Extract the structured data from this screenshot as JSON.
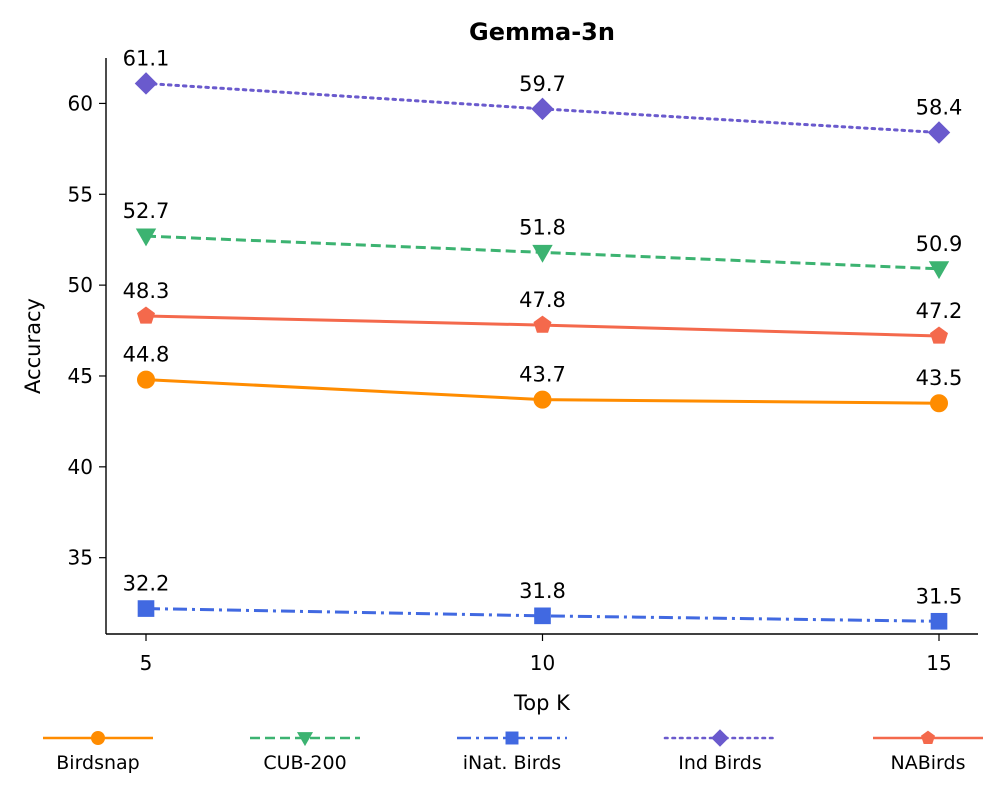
{
  "chart_data": {
    "type": "line",
    "title": "Gemma-3n",
    "xlabel": "Top K",
    "ylabel": "Accuracy",
    "x": [
      5,
      10,
      15
    ],
    "xticks": [
      "5",
      "10",
      "15"
    ],
    "yticks": [
      35,
      40,
      45,
      50,
      55,
      60
    ],
    "ylim": [
      30.8,
      62.5
    ],
    "grid": false,
    "legend_position": "bottom",
    "series": [
      {
        "name": "Birdsnap",
        "values": [
          44.8,
          43.7,
          43.5
        ],
        "labels": [
          "44.8",
          "43.7",
          "43.5"
        ],
        "color": "#FF8C00",
        "dash": "solid",
        "marker": "circle"
      },
      {
        "name": "CUB-200",
        "values": [
          52.7,
          51.8,
          50.9
        ],
        "labels": [
          "52.7",
          "51.8",
          "50.9"
        ],
        "color": "#3CB371",
        "dash": "dashed",
        "marker": "triangle-down"
      },
      {
        "name": "iNat. Birds",
        "values": [
          32.2,
          31.8,
          31.5
        ],
        "labels": [
          "32.2",
          "31.8",
          "31.5"
        ],
        "color": "#4169E1",
        "dash": "dashdot",
        "marker": "square"
      },
      {
        "name": "Ind Birds",
        "values": [
          61.1,
          59.7,
          58.4
        ],
        "labels": [
          "61.1",
          "59.7",
          "58.4"
        ],
        "color": "#6A5ACD",
        "dash": "dotted",
        "marker": "diamond"
      },
      {
        "name": "NABirds",
        "values": [
          48.3,
          47.8,
          47.2
        ],
        "labels": [
          "48.3",
          "47.8",
          "47.2"
        ],
        "color": "#F4694C",
        "dash": "solid",
        "marker": "pentagon"
      }
    ]
  }
}
